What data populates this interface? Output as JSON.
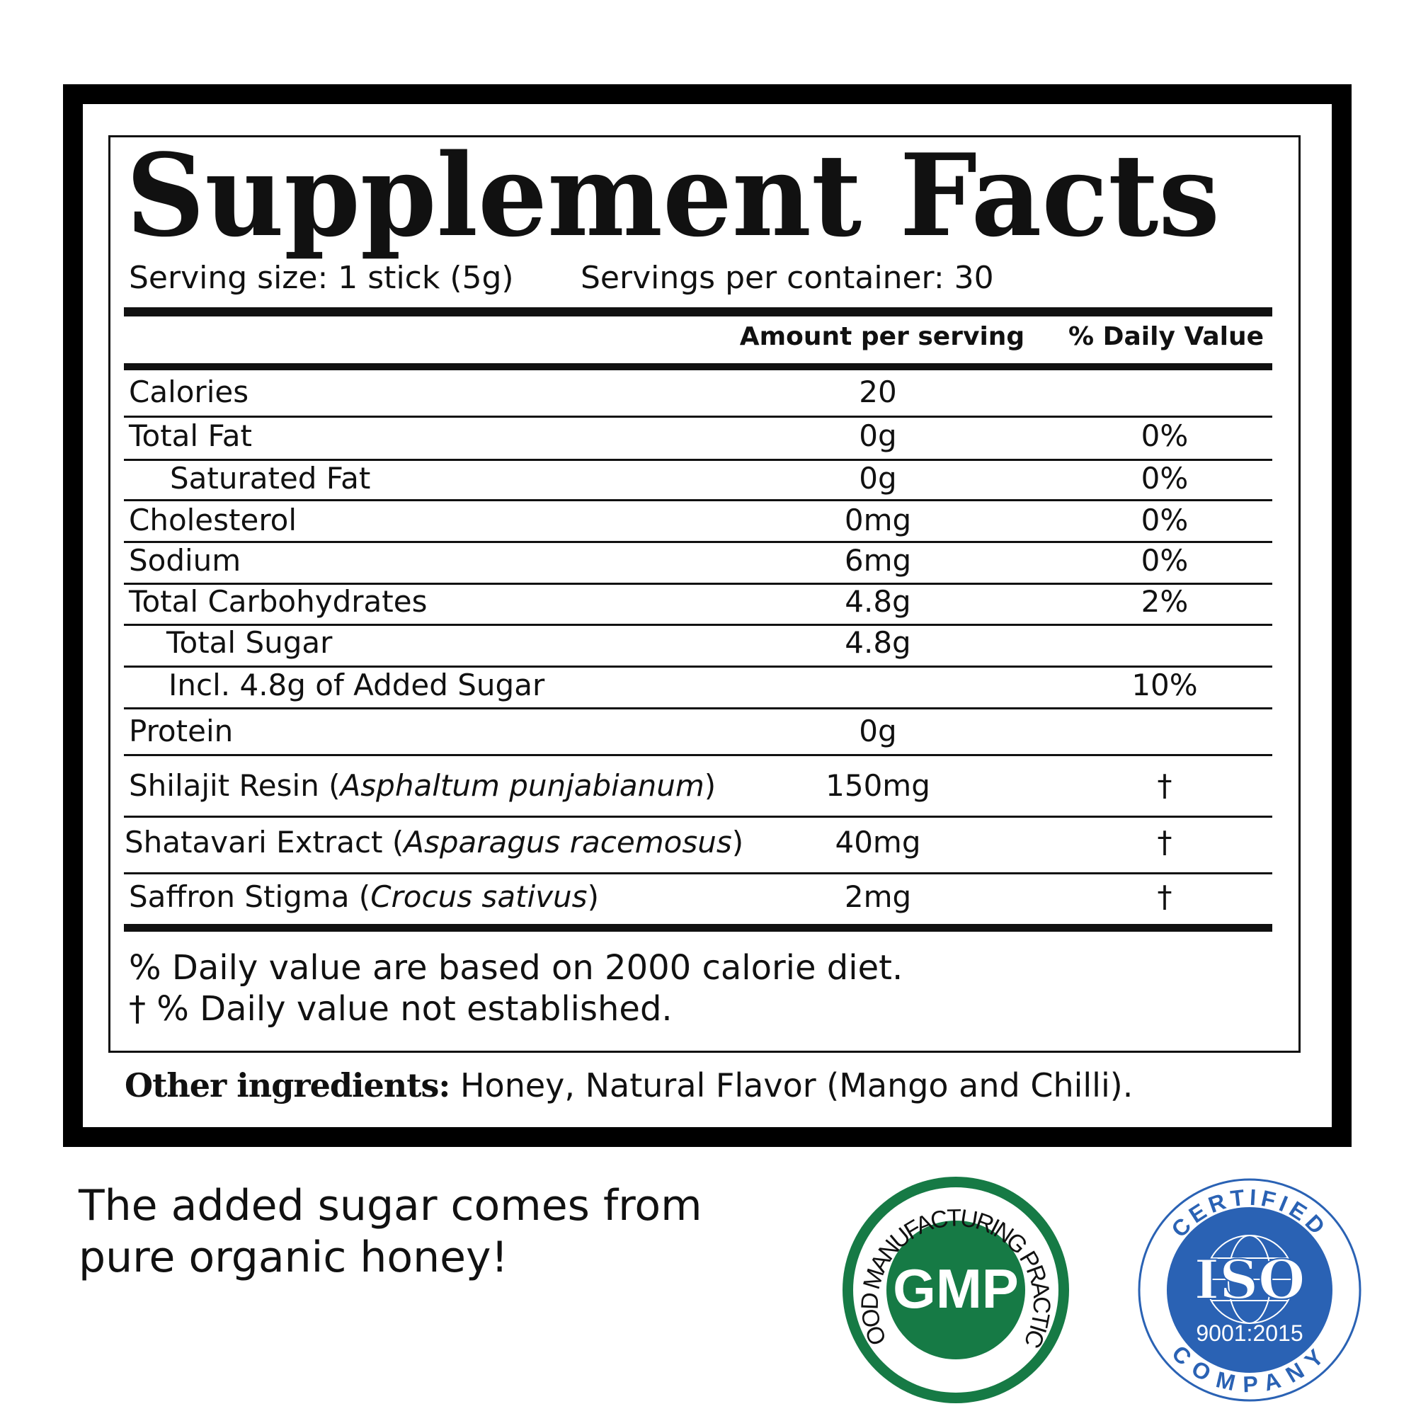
{
  "title": "Supplement Facts",
  "serving_size": "Serving size: 1 stick (5g)",
  "servings_per_container": "Servings per container: 30",
  "headers": {
    "amount": "Amount per serving",
    "dv": "% Daily Value"
  },
  "rows": [
    {
      "label": "Calories",
      "amount": "20",
      "dv": ""
    },
    {
      "label": "Total Fat",
      "amount": "0g",
      "dv": "0%"
    },
    {
      "label": "Saturated Fat",
      "amount": "0g",
      "dv": "0%"
    },
    {
      "label": "Cholesterol",
      "amount": "0mg",
      "dv": "0%"
    },
    {
      "label": "Sodium",
      "amount": "6mg",
      "dv": "0%"
    },
    {
      "label": "Total Carbohydrates",
      "amount": "4.8g",
      "dv": "2%"
    },
    {
      "label": "Total Sugar",
      "amount": "4.8g",
      "dv": ""
    },
    {
      "label": "Incl. 4.8g of Added Sugar",
      "amount": "",
      "dv": "10%"
    },
    {
      "label": "Protein",
      "amount": "0g",
      "dv": ""
    },
    {
      "label": "Shilajit Resin (",
      "latin": "Asphaltum punjabianum",
      "close": ")",
      "amount": "150mg",
      "dv": "†"
    },
    {
      "label": "Shatavari Extract (",
      "latin": "Asparagus racemosus",
      "close": ")",
      "amount": "40mg",
      "dv": "†"
    },
    {
      "label": "Saffron Stigma (",
      "latin": "Crocus sativus",
      "close": ")",
      "amount": "2mg",
      "dv": "†"
    }
  ],
  "footnotes": [
    "% Daily value are based on 2000 calorie diet.",
    "† % Daily value not established."
  ],
  "other_ingredients": {
    "label": "Other ingredients:",
    "text": " Honey, Natural Flavor (Mango and Chilli)."
  },
  "tagline": [
    "The added sugar comes from",
    "pure organic honey!"
  ],
  "badges": {
    "gmp": {
      "arc_text": "GOOD MANUFACTURING PRACTICE",
      "center": "GMP",
      "color": "#167a45"
    },
    "iso": {
      "top": "CERTIFIED",
      "center": "ISO",
      "standard": "9001:2015",
      "bottom": "COMPANY",
      "color": "#2a62b4"
    }
  }
}
